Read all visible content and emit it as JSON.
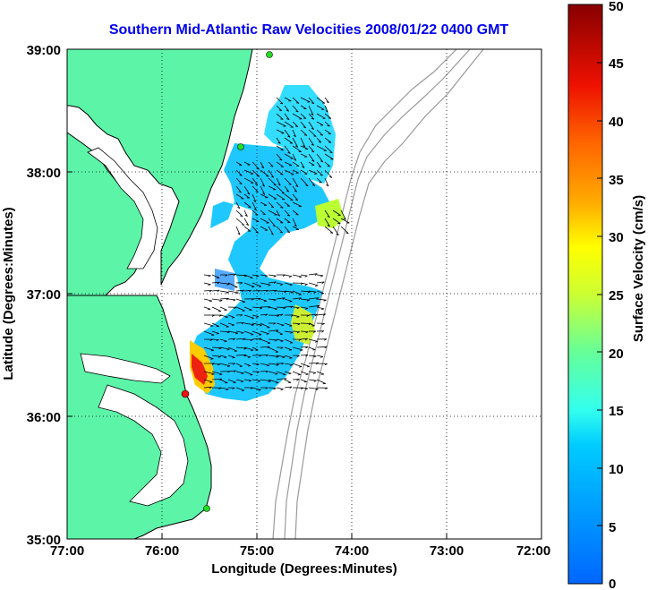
{
  "title": "Southern Mid-Atlantic Raw Velocities 2008/01/22 0400 GMT",
  "xlabel": "Longitude (Degrees:Minutes)",
  "ylabel": "Latitude (Degrees:Minutes)",
  "x_ticks": [
    "77:00",
    "76:00",
    "75:00",
    "74:00",
    "73:00",
    "72:00"
  ],
  "y_ticks": [
    "39:00",
    "38:00",
    "37:00",
    "36:00",
    "35:00"
  ],
  "colorbar": {
    "label": "Surface Velocity (cm/s)",
    "ticks": [
      "0",
      "5",
      "10",
      "15",
      "20",
      "25",
      "30",
      "35",
      "40",
      "45",
      "50"
    ],
    "range": [
      0,
      50
    ],
    "units": "cm/s"
  },
  "colors": {
    "land": "#5cf5a8",
    "title": "#0000ee",
    "bathymetry": "#9a9a9a",
    "station_markers": "#22dd22",
    "highlight_station": "#ee1111"
  },
  "map_extent": {
    "lon_range_deg_west": [
      77,
      72
    ],
    "lat_range_deg_north": [
      35,
      39
    ]
  }
}
